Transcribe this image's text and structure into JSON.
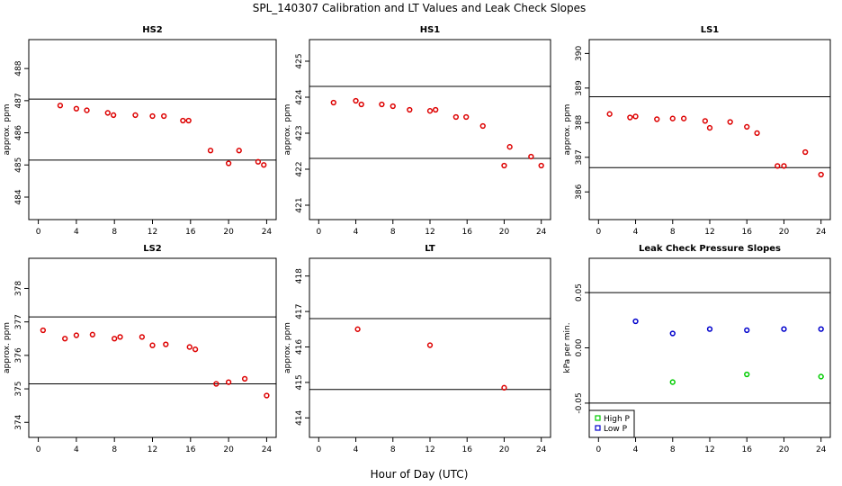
{
  "title": "SPL_140307  Calibration and LT Values and Leak Check Slopes",
  "xlabel": "Hour of Day (UTC)",
  "chart_data": [
    {
      "type": "scatter",
      "title": "HS2",
      "ylabel": "approx. ppm",
      "xlim": [
        -1,
        25
      ],
      "ylim": [
        483.3,
        488.9
      ],
      "xticks": [
        0,
        4,
        8,
        12,
        16,
        20,
        24
      ],
      "yticks": [
        484,
        485,
        486,
        487,
        488
      ],
      "hlines": [
        487.05,
        485.15
      ],
      "series": [
        {
          "name": "HS2",
          "color": "#dd0000",
          "x": [
            2.3,
            4.0,
            5.1,
            7.3,
            7.9,
            10.2,
            12.0,
            13.2,
            15.2,
            15.8,
            18.1,
            20.0,
            21.1,
            23.1,
            23.7
          ],
          "y": [
            486.85,
            486.75,
            486.7,
            486.62,
            486.55,
            486.55,
            486.52,
            486.52,
            486.38,
            486.38,
            485.45,
            485.05,
            485.45,
            485.1,
            485.0
          ]
        }
      ]
    },
    {
      "type": "scatter",
      "title": "HS1",
      "ylabel": "approx. ppm",
      "xlim": [
        -1,
        25
      ],
      "ylim": [
        420.6,
        425.6
      ],
      "xticks": [
        0,
        4,
        8,
        12,
        16,
        20,
        24
      ],
      "yticks": [
        421,
        422,
        423,
        424,
        425
      ],
      "hlines": [
        424.3,
        422.3
      ],
      "series": [
        {
          "name": "HS1",
          "color": "#dd0000",
          "x": [
            1.6,
            4.0,
            4.6,
            6.8,
            8.0,
            9.8,
            12.0,
            12.6,
            14.8,
            15.9,
            17.7,
            20.0,
            20.6,
            22.9,
            24.0
          ],
          "y": [
            423.85,
            423.9,
            423.8,
            423.8,
            423.75,
            423.65,
            423.62,
            423.65,
            423.45,
            423.45,
            423.2,
            422.1,
            422.62,
            422.35,
            422.1
          ]
        }
      ]
    },
    {
      "type": "scatter",
      "title": "LS1",
      "ylabel": "approx. ppm",
      "xlim": [
        -1,
        25
      ],
      "ylim": [
        385.2,
        390.4
      ],
      "xticks": [
        0,
        4,
        8,
        12,
        16,
        20,
        24
      ],
      "yticks": [
        386,
        387,
        388,
        389,
        390
      ],
      "hlines": [
        388.75,
        386.7
      ],
      "series": [
        {
          "name": "LS1",
          "color": "#dd0000",
          "x": [
            1.2,
            3.4,
            4.0,
            6.3,
            8.0,
            9.2,
            11.5,
            12.0,
            14.2,
            16.0,
            17.1,
            19.3,
            20.0,
            22.3,
            24.0
          ],
          "y": [
            388.25,
            388.15,
            388.18,
            388.1,
            388.12,
            388.12,
            388.05,
            387.85,
            388.02,
            387.88,
            387.7,
            386.75,
            386.75,
            387.15,
            386.5
          ]
        }
      ]
    },
    {
      "type": "scatter",
      "title": "LS2",
      "ylabel": "approx. ppm",
      "xlim": [
        -1,
        25
      ],
      "ylim": [
        373.55,
        378.9
      ],
      "xticks": [
        0,
        4,
        8,
        12,
        16,
        20,
        24
      ],
      "yticks": [
        374,
        375,
        376,
        377,
        378
      ],
      "hlines": [
        377.15,
        375.15
      ],
      "series": [
        {
          "name": "LS2",
          "color": "#dd0000",
          "x": [
            0.5,
            2.8,
            4.0,
            5.7,
            8.0,
            8.6,
            10.9,
            12.0,
            13.4,
            15.9,
            16.5,
            18.7,
            20.0,
            21.7,
            24.0
          ],
          "y": [
            376.75,
            376.5,
            376.6,
            376.62,
            376.5,
            376.55,
            376.55,
            376.3,
            376.33,
            376.25,
            376.18,
            375.15,
            375.2,
            375.3,
            374.8
          ]
        }
      ]
    },
    {
      "type": "scatter",
      "title": "LT",
      "ylabel": "approx. ppm",
      "xlim": [
        -1,
        25
      ],
      "ylim": [
        413.45,
        418.5
      ],
      "xticks": [
        0,
        4,
        8,
        12,
        16,
        20,
        24
      ],
      "yticks": [
        414,
        415,
        416,
        417,
        418
      ],
      "hlines": [
        416.8,
        414.8
      ],
      "series": [
        {
          "name": "LT",
          "color": "#dd0000",
          "x": [
            4.2,
            12.0,
            20.0
          ],
          "y": [
            416.5,
            416.05,
            414.85
          ]
        }
      ]
    },
    {
      "type": "scatter",
      "title": "Leak Check Pressure Slopes",
      "ylabel": "kPa per min.",
      "xlim": [
        -1,
        25
      ],
      "ylim": [
        -0.081,
        0.081
      ],
      "xticks": [
        0,
        4,
        8,
        12,
        16,
        20,
        24
      ],
      "yticks": [
        -0.05,
        0.0,
        0.05
      ],
      "ytick_labels": [
        "-0.05",
        "0.00",
        "0.05"
      ],
      "hlines": [
        0.05,
        -0.05
      ],
      "legend": {
        "position": "bottom-left",
        "entries": [
          "High P",
          "Low P"
        ]
      },
      "series": [
        {
          "name": "High P",
          "color": "#00cc00",
          "x": [
            8.0,
            16.0,
            24.0
          ],
          "y": [
            -0.031,
            -0.024,
            -0.026
          ]
        },
        {
          "name": "Low P",
          "color": "#0000cc",
          "x": [
            4.0,
            8.0,
            12.0,
            16.0,
            20.0,
            24.0
          ],
          "y": [
            0.024,
            0.013,
            0.017,
            0.016,
            0.017,
            0.017
          ]
        }
      ]
    }
  ]
}
